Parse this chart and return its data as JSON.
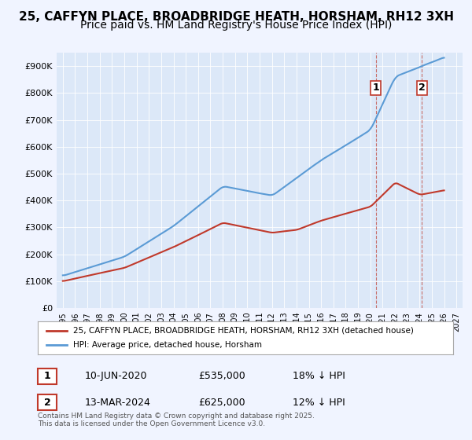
{
  "title": "25, CAFFYN PLACE, BROADBRIDGE HEATH, HORSHAM, RH12 3XH",
  "subtitle": "Price paid vs. HM Land Registry's House Price Index (HPI)",
  "ylabel": "",
  "background_color": "#f0f4ff",
  "plot_bg_color": "#dce8f8",
  "legend_label_red": "25, CAFFYN PLACE, BROADBRIDGE HEATH, HORSHAM, RH12 3XH (detached house)",
  "legend_label_blue": "HPI: Average price, detached house, Horsham",
  "annotation1_label": "1",
  "annotation1_date": "10-JUN-2020",
  "annotation1_price": "£535,000",
  "annotation1_hpi": "18% ↓ HPI",
  "annotation2_label": "2",
  "annotation2_date": "13-MAR-2024",
  "annotation2_price": "£625,000",
  "annotation2_hpi": "12% ↓ HPI",
  "footer": "Contains HM Land Registry data © Crown copyright and database right 2025.\nThis data is licensed under the Open Government Licence v3.0.",
  "ylim": [
    0,
    950000
  ],
  "yticks": [
    0,
    100000,
    200000,
    300000,
    400000,
    500000,
    600000,
    700000,
    800000,
    900000
  ],
  "ytick_labels": [
    "£0",
    "£100K",
    "£200K",
    "£300K",
    "£400K",
    "£500K",
    "£600K",
    "£700K",
    "£800K",
    "£900K"
  ],
  "xlim_start": 1994.5,
  "xlim_end": 2027.5,
  "xticks": [
    1995,
    1996,
    1997,
    1998,
    1999,
    2000,
    2001,
    2002,
    2003,
    2004,
    2005,
    2006,
    2007,
    2008,
    2009,
    2010,
    2011,
    2012,
    2013,
    2014,
    2015,
    2016,
    2017,
    2018,
    2019,
    2020,
    2021,
    2022,
    2023,
    2024,
    2025,
    2026,
    2027
  ],
  "hpi_color": "#5b9bd5",
  "price_color": "#c0392b",
  "marker1_x": 2020.44,
  "marker1_y": 535000,
  "marker2_x": 2024.2,
  "marker2_y": 625000,
  "title_fontsize": 11,
  "subtitle_fontsize": 10
}
